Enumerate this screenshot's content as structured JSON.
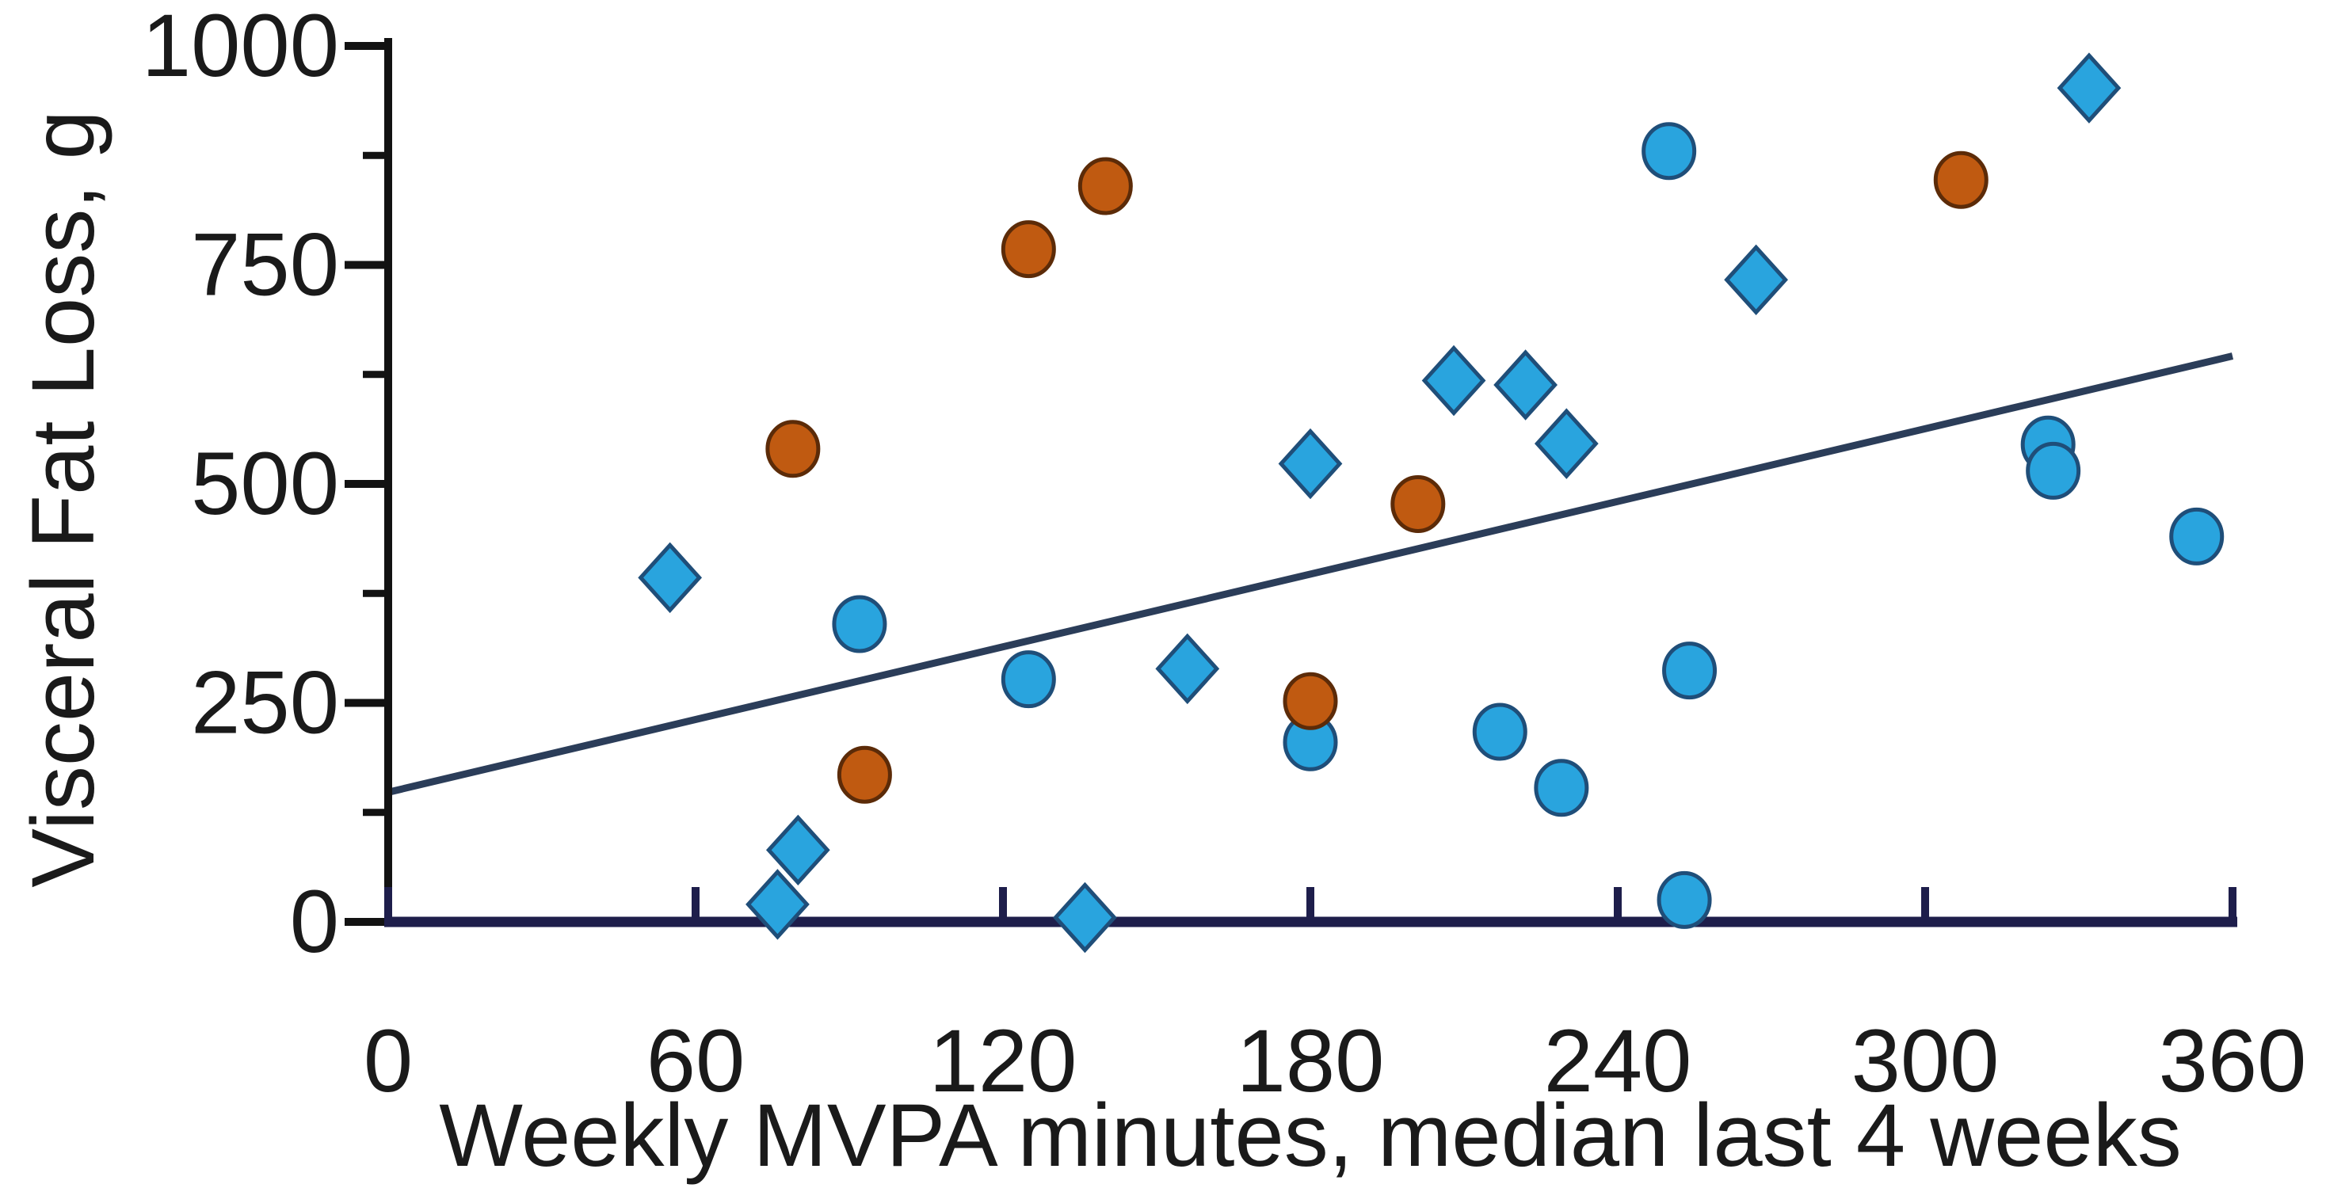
{
  "chart_data": {
    "type": "scatter",
    "title": "",
    "xlabel": "Weekly MVPA minutes, median last 4 weeks",
    "ylabel": "Visceral Fat Loss, g",
    "xlim": [
      0,
      360
    ],
    "ylim": [
      0,
      1000
    ],
    "x_ticks": [
      0,
      60,
      120,
      180,
      240,
      300,
      360
    ],
    "y_ticks": [
      0,
      250,
      500,
      750,
      1000
    ],
    "y_minor_ticks": [
      125,
      375,
      625,
      875
    ],
    "grid": false,
    "legend_position": "none",
    "series": [
      {
        "name": "blue-circles",
        "marker": "circle",
        "fill": "#29A4DE",
        "stroke": "#1F4E79",
        "points": [
          [
            92,
            340
          ],
          [
            125,
            277
          ],
          [
            180,
            205
          ],
          [
            217,
            217
          ],
          [
            229,
            153
          ],
          [
            250,
            880
          ],
          [
            253,
            25
          ],
          [
            254,
            287
          ],
          [
            324,
            545
          ],
          [
            325,
            515
          ],
          [
            353,
            440
          ]
        ]
      },
      {
        "name": "blue-diamonds",
        "marker": "diamond",
        "fill": "#29A4DE",
        "stroke": "#1F4E79",
        "points": [
          [
            55,
            393
          ],
          [
            76,
            20
          ],
          [
            80,
            82
          ],
          [
            136,
            5
          ],
          [
            156,
            289
          ],
          [
            180,
            523
          ],
          [
            208,
            618
          ],
          [
            222,
            613
          ],
          [
            230,
            546
          ],
          [
            267,
            733
          ],
          [
            332,
            952
          ]
        ]
      },
      {
        "name": "orange-circles",
        "marker": "circle",
        "fill": "#C05A11",
        "stroke": "#5C2B08",
        "points": [
          [
            79,
            540
          ],
          [
            93,
            168
          ],
          [
            125,
            768
          ],
          [
            140,
            840
          ],
          [
            180,
            252
          ],
          [
            201,
            477
          ],
          [
            307,
            847
          ]
        ]
      }
    ],
    "trend_line": {
      "x": [
        0,
        360
      ],
      "y": [
        148,
        646
      ],
      "color": "#2B3D59"
    }
  },
  "colors": {
    "background": "#ffffff",
    "text": "#1a1a1a",
    "y_axis": "#121212",
    "x_axis": "#1E1E4B",
    "trend": "#2B3D59",
    "blue_fill": "#29A4DE",
    "blue_stroke": "#1F4E79",
    "orange_fill": "#C05A11",
    "orange_stroke": "#5C2B08"
  }
}
